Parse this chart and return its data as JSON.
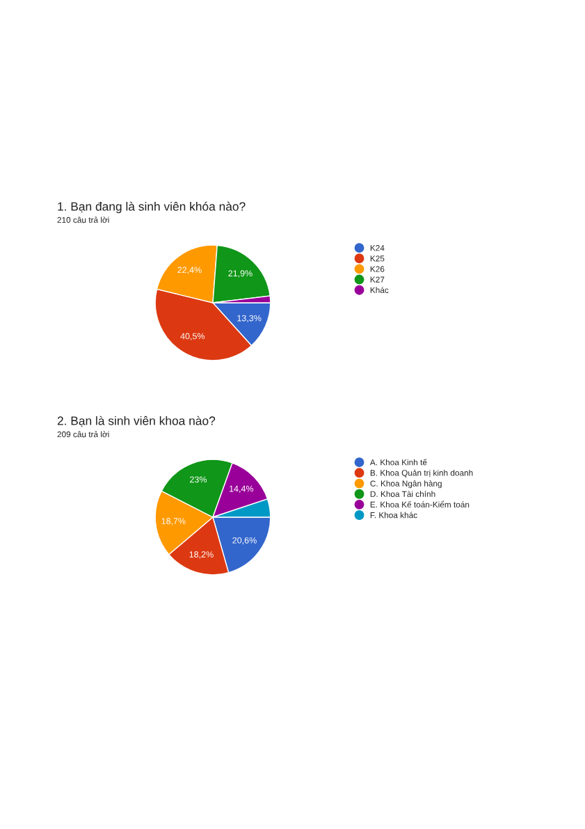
{
  "chart_data": [
    {
      "type": "pie",
      "title": "1. Bạn đang là sinh viên khóa nào?",
      "subtitle": "210 câu trả lời",
      "categories": [
        "K24",
        "K25",
        "K26",
        "K27",
        "Khác"
      ],
      "values": [
        13.3,
        40.5,
        22.4,
        21.9,
        1.9
      ],
      "value_labels": [
        "13,3%",
        "40,5%",
        "22,4%",
        "21,9%",
        null
      ],
      "colors": [
        "#3366cc",
        "#dc3912",
        "#ff9900",
        "#109618",
        "#990099"
      ],
      "legend": "right"
    },
    {
      "type": "pie",
      "title": "2. Bạn là sinh viên khoa nào?",
      "subtitle": "209 câu trả lời",
      "categories": [
        "A. Khoa Kinh tế",
        "B. Khoa Quản trị kinh doanh",
        "C. Khoa Ngân hàng",
        "D. Khoa Tài chính",
        "E. Khoa Kế toán-Kiểm toán",
        "F. Khoa khác"
      ],
      "values": [
        20.6,
        18.2,
        18.7,
        23,
        14.4,
        5.1
      ],
      "value_labels": [
        "20,6%",
        "18,2%",
        "18,7%",
        "23%",
        "14,4%",
        null
      ],
      "colors": [
        "#3366cc",
        "#dc3912",
        "#ff9900",
        "#109618",
        "#990099",
        "#0099c6"
      ],
      "legend": "right"
    }
  ]
}
